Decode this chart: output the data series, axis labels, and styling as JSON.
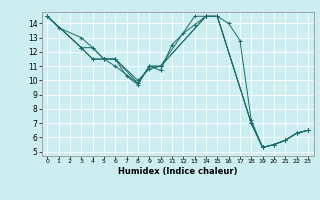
{
  "xlabel": "Humidex (Indice chaleur)",
  "bg_color": "#cceef0",
  "line_color": "#1a6b6b",
  "grid_color": "#ffffff",
  "xlim": [
    -0.5,
    23.5
  ],
  "ylim": [
    4.7,
    14.8
  ],
  "yticks": [
    5,
    6,
    7,
    8,
    9,
    10,
    11,
    12,
    13,
    14
  ],
  "xticks": [
    0,
    1,
    2,
    3,
    4,
    5,
    6,
    7,
    8,
    9,
    10,
    11,
    12,
    13,
    14,
    15,
    16,
    17,
    18,
    19,
    20,
    21,
    22,
    23
  ],
  "lines": [
    {
      "x": [
        0,
        1,
        3,
        4,
        5,
        6,
        7,
        8,
        9,
        10,
        11,
        12,
        13,
        14,
        15,
        16,
        17,
        18,
        19,
        20,
        21,
        22,
        23
      ],
      "y": [
        14.5,
        13.7,
        13.0,
        12.3,
        11.5,
        11.5,
        10.3,
        9.7,
        11.0,
        10.7,
        12.5,
        13.3,
        13.9,
        14.5,
        14.5,
        14.0,
        12.8,
        7.2,
        5.3,
        5.5,
        5.8,
        6.3,
        6.5
      ]
    },
    {
      "x": [
        0,
        3,
        4,
        5,
        6,
        8,
        9,
        10,
        13,
        14,
        15,
        18,
        19,
        20,
        21,
        22,
        23
      ],
      "y": [
        14.5,
        12.3,
        12.3,
        11.5,
        11.5,
        10.0,
        10.8,
        11.0,
        14.5,
        14.5,
        14.5,
        7.0,
        5.3,
        5.5,
        5.8,
        6.3,
        6.5
      ]
    },
    {
      "x": [
        0,
        3,
        4,
        5,
        6,
        8,
        9,
        10,
        14,
        15,
        18,
        19,
        20,
        21,
        22,
        23
      ],
      "y": [
        14.5,
        12.3,
        11.5,
        11.5,
        11.5,
        9.8,
        11.0,
        11.0,
        14.5,
        14.5,
        7.0,
        5.3,
        5.5,
        5.8,
        6.3,
        6.5
      ]
    },
    {
      "x": [
        0,
        3,
        4,
        5,
        6,
        8,
        9,
        10,
        14,
        15,
        18,
        19,
        20,
        21,
        22,
        23
      ],
      "y": [
        14.5,
        12.3,
        11.5,
        11.5,
        11.0,
        9.8,
        11.0,
        11.0,
        14.5,
        14.5,
        7.0,
        5.3,
        5.5,
        5.8,
        6.3,
        6.5
      ]
    }
  ]
}
